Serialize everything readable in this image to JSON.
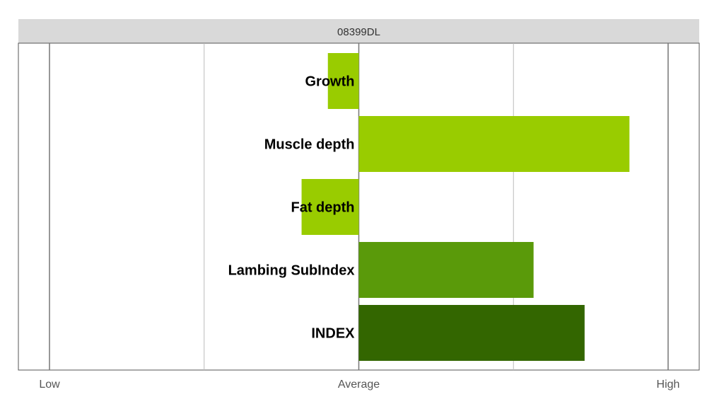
{
  "chart_data": {
    "type": "bar",
    "orientation": "horizontal",
    "title": "08399DL",
    "categories": [
      "Growth",
      "Muscle depth",
      "Fat depth",
      "Lambing SubIndex",
      "INDEX"
    ],
    "values": [
      -0.2,
      1.75,
      -0.37,
      1.13,
      1.46
    ],
    "colors": [
      "#99cc00",
      "#99cc00",
      "#99cc00",
      "#5a9a0a",
      "#336600"
    ],
    "xlim": [
      -2.0,
      2.0
    ],
    "ticks": [
      {
        "value": -2.0,
        "label": "Low"
      },
      {
        "value": 0.0,
        "label": "Average"
      },
      {
        "value": 2.0,
        "label": "High"
      }
    ],
    "gridlines": [
      -2.0,
      -1.0,
      0.0,
      1.0,
      2.0
    ],
    "grid": true,
    "legend": "none"
  }
}
